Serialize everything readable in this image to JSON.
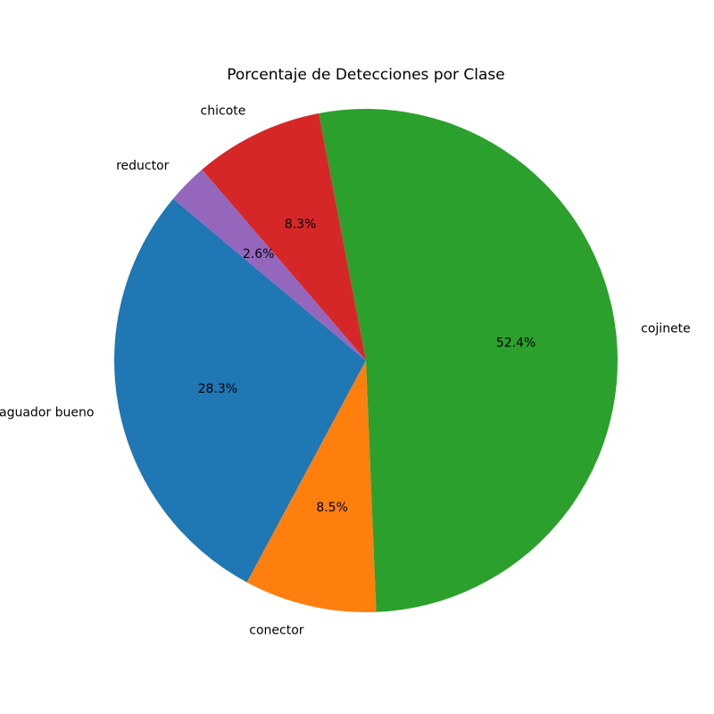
{
  "chart_data": {
    "type": "pie",
    "title": "Porcentaje de Detecciones por Clase",
    "categories": [
      "aguador bueno",
      "conector",
      "cojinete",
      "chicote",
      "reductor"
    ],
    "values": [
      28.3,
      8.5,
      52.4,
      8.3,
      2.6
    ],
    "value_labels": [
      "28.3%",
      "8.5%",
      "52.4%",
      "8.3%",
      "2.6%"
    ],
    "colors": [
      "#1f77b4",
      "#ff7f0e",
      "#2ca02c",
      "#d62728",
      "#9467bd"
    ],
    "start_angle_deg": 140,
    "direction": "counterclockwise",
    "legend": "none"
  }
}
